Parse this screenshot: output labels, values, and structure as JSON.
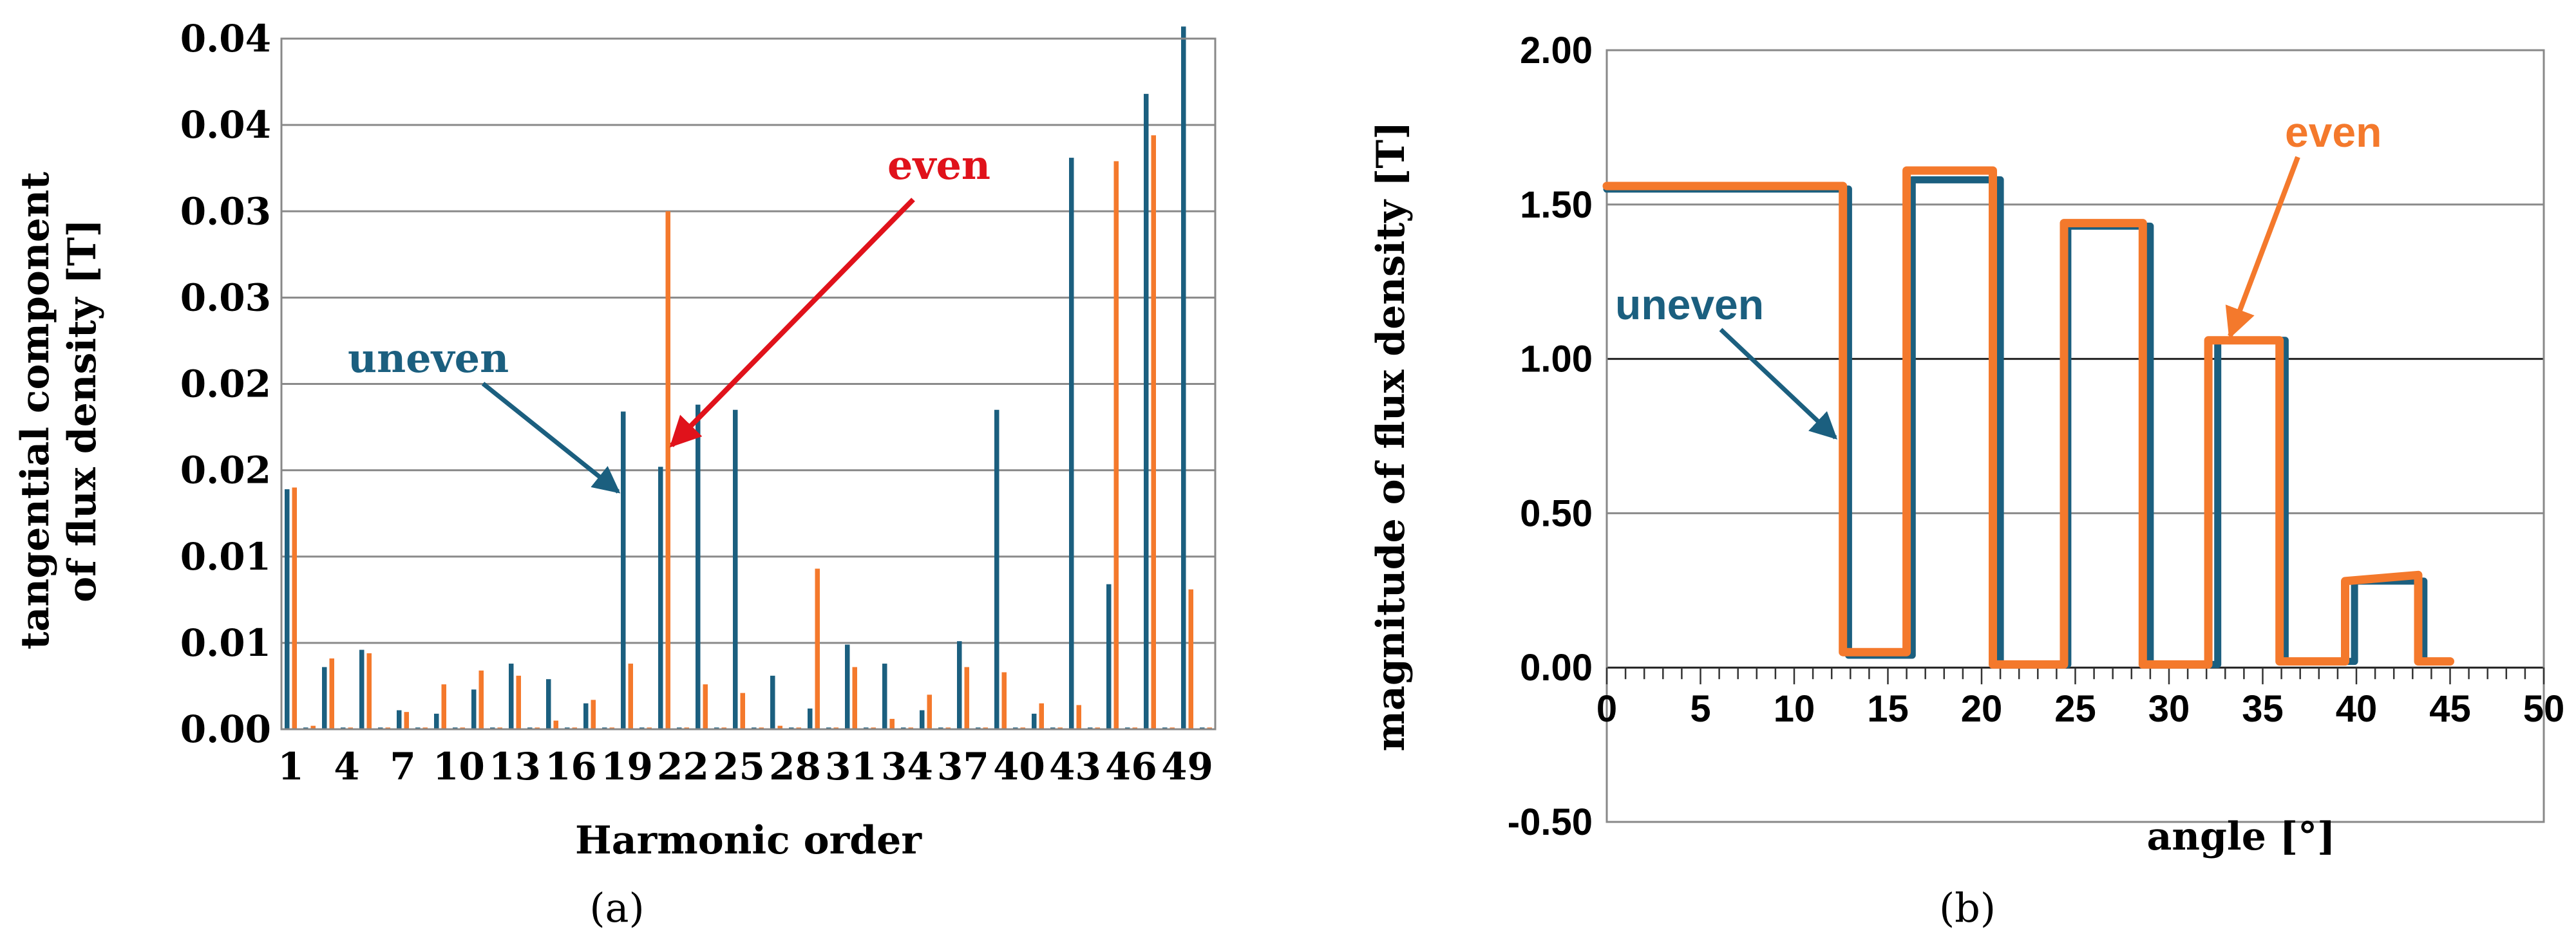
{
  "chart_data": [
    {
      "type": "bar",
      "panel_label": "(a)",
      "xlabel": "Harmonic order",
      "ylabel": [
        "tangential component",
        "of flux density [T]"
      ],
      "ylim": [
        0,
        0.04
      ],
      "y_tick_labels": [
        "0.00",
        "0.01",
        "0.01",
        "0.02",
        "0.02",
        "0.03",
        "0.03",
        "0.04",
        "0.04"
      ],
      "x_tick_labels": [
        "1",
        "4",
        "7",
        "10",
        "13",
        "16",
        "19",
        "22",
        "25",
        "28",
        "31",
        "34",
        "37",
        "40",
        "43",
        "46",
        "49"
      ],
      "categories": [
        1,
        2,
        3,
        4,
        5,
        6,
        7,
        8,
        9,
        10,
        11,
        12,
        13,
        14,
        15,
        16,
        17,
        18,
        19,
        20,
        21,
        22,
        23,
        24,
        25,
        26,
        27,
        28,
        29,
        30,
        31,
        32,
        33,
        34,
        35,
        36,
        37,
        38,
        39,
        40,
        41,
        42,
        43,
        44,
        45,
        46,
        47,
        48,
        49,
        50
      ],
      "grid": true,
      "series": [
        {
          "name": "uneven",
          "color": "#1b5f7f",
          "values": [
            0.0139,
            0.0001,
            0.0036,
            0.0001,
            0.0046,
            0.0001,
            0.0011,
            0.0001,
            0.0009,
            0.0001,
            0.0023,
            0.0001,
            0.0038,
            0.0001,
            0.0029,
            0.0001,
            0.0015,
            0.0001,
            0.0184,
            0.0001,
            0.0152,
            0.0001,
            0.0188,
            0.0001,
            0.0185,
            0.0001,
            0.0031,
            0.0001,
            0.0012,
            0.0001,
            0.0049,
            0.0001,
            0.0038,
            0.0001,
            0.0011,
            0.0001,
            0.0051,
            0.0001,
            0.0185,
            0.0001,
            0.0009,
            0.0001,
            0.0331,
            0.0001,
            0.0084,
            0.0001,
            0.0368,
            0.0001,
            0.0407,
            0.0001
          ]
        },
        {
          "name": "even",
          "color": "#f4792c",
          "values": [
            0.014,
            0.0002,
            0.0041,
            0.0001,
            0.0044,
            0.0001,
            0.001,
            0.0001,
            0.0026,
            0.0001,
            0.0034,
            0.0001,
            0.0031,
            0.0001,
            0.0005,
            0.0001,
            0.0017,
            0.0001,
            0.0038,
            0.0001,
            0.03,
            0.0001,
            0.0026,
            0.0001,
            0.0021,
            0.0001,
            0.0002,
            0.0001,
            0.0093,
            0.0001,
            0.0036,
            0.0001,
            0.0006,
            0.0001,
            0.002,
            0.0001,
            0.0036,
            0.0001,
            0.0033,
            0.0001,
            0.0015,
            0.0001,
            0.0014,
            0.0001,
            0.0329,
            0.0001,
            0.0344,
            0.0001,
            0.0081,
            0.0001
          ]
        }
      ],
      "annotations": [
        {
          "text": "uneven",
          "color": "#1b5f7f"
        },
        {
          "text": "even",
          "color": "#e0121b"
        }
      ]
    },
    {
      "type": "line",
      "panel_label": "(b)",
      "xlabel": "angle [°]",
      "ylabel": "magnitude of flux density [T]",
      "xlim": [
        0,
        50
      ],
      "ylim": [
        -0.5,
        2.0
      ],
      "x_tick_labels": [
        "0",
        "5",
        "10",
        "15",
        "20",
        "25",
        "30",
        "35",
        "40",
        "45",
        "50"
      ],
      "y_tick_labels": [
        "-0.50",
        "0.00",
        "0.50",
        "1.00",
        "1.50",
        "2.00"
      ],
      "grid": true,
      "series": [
        {
          "name": "uneven",
          "color": "#1b5f7f",
          "x": [
            0,
            12.9,
            12.9,
            16.3,
            16.3,
            21.0,
            21.0,
            24.6,
            24.6,
            29.0,
            29.0,
            32.6,
            32.6,
            36.2,
            36.2,
            39.9,
            39.9,
            43.6,
            43.6,
            45
          ],
          "y": [
            1.55,
            1.55,
            0.04,
            0.04,
            1.58,
            1.58,
            0.01,
            0.01,
            1.43,
            1.43,
            0.01,
            0.01,
            1.06,
            1.06,
            0.02,
            0.02,
            0.28,
            0.28,
            0.02,
            0.02
          ]
        },
        {
          "name": "even",
          "color": "#f4792c",
          "x": [
            0,
            12.6,
            12.6,
            16.0,
            16.0,
            20.6,
            20.6,
            24.4,
            24.4,
            28.6,
            28.6,
            32.1,
            32.1,
            35.9,
            35.9,
            39.4,
            39.4,
            43.3,
            43.3,
            45
          ],
          "y": [
            1.56,
            1.56,
            0.05,
            0.05,
            1.61,
            1.61,
            0.01,
            0.01,
            1.44,
            1.44,
            0.01,
            0.01,
            1.06,
            1.06,
            0.02,
            0.02,
            0.28,
            0.3,
            0.02,
            0.02
          ]
        }
      ],
      "annotations": [
        {
          "text": "uneven",
          "color": "#1b5f7f"
        },
        {
          "text": "even",
          "color": "#f4792c"
        }
      ]
    }
  ]
}
